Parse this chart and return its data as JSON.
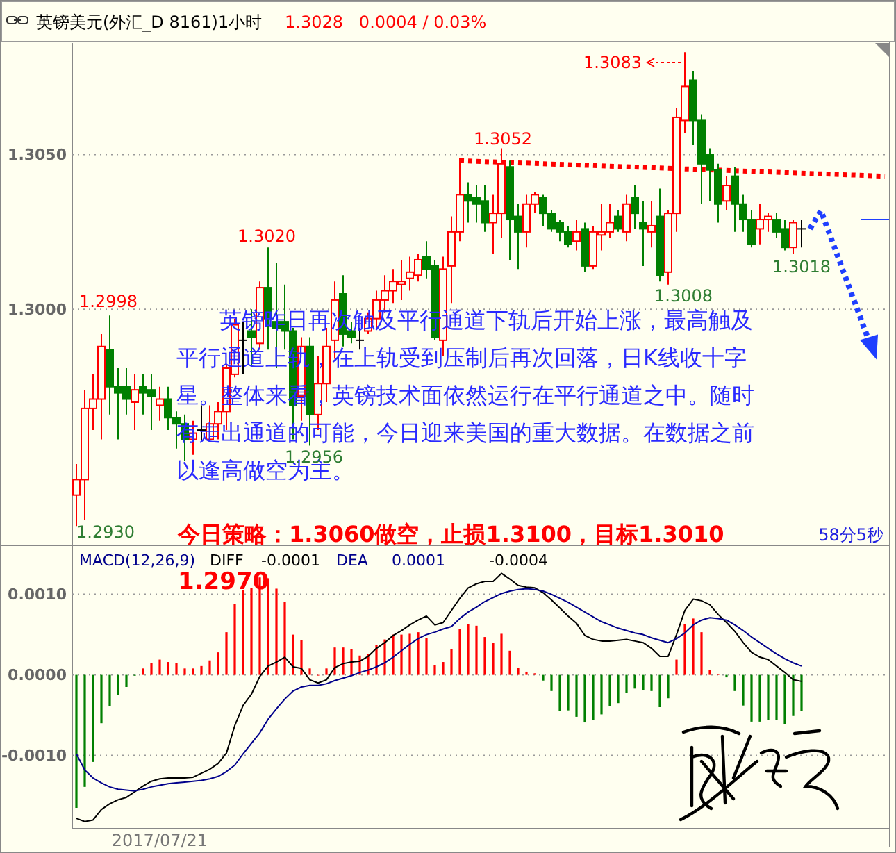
{
  "chart_data": [
    {
      "type": "candlestick",
      "title": "英镑美元(外汇_D 8161)1小时",
      "subtitle": "1.3028   0.0004 / 0.03%",
      "categories": [
        null,
        null,
        null,
        null,
        null,
        null,
        null,
        null,
        null,
        null,
        null,
        null,
        null,
        null,
        null,
        null,
        null,
        null,
        null,
        null,
        null,
        null,
        null,
        null,
        null,
        null,
        null,
        null,
        null,
        null,
        null,
        null,
        null,
        null,
        null,
        null,
        null,
        null,
        null,
        null,
        null,
        null,
        null,
        null,
        null,
        null,
        null,
        null,
        null,
        null,
        null,
        null,
        null,
        null,
        null,
        null,
        null,
        null,
        null,
        null,
        null,
        null,
        null,
        null,
        null,
        null,
        null,
        null,
        null,
        null,
        null,
        null,
        null,
        null,
        null,
        null,
        null,
        null,
        null,
        null,
        null,
        null,
        null,
        null,
        null,
        null,
        null,
        null,
        null,
        null,
        null,
        null,
        null,
        null,
        null,
        null,
        null,
        null
      ],
      "ohlc": [
        [
          1.294,
          1.295,
          1.293,
          1.2945
        ],
        [
          1.2945,
          1.2974,
          1.2932,
          1.2968
        ],
        [
          1.2968,
          1.2979,
          1.2961,
          1.2971
        ],
        [
          1.2971,
          1.2992,
          1.2958,
          1.2988
        ],
        [
          1.2987,
          1.2998,
          1.2966,
          1.2975
        ],
        [
          1.2975,
          1.2981,
          1.2958,
          1.2973
        ],
        [
          1.2975,
          1.2981,
          1.2966,
          1.2971
        ],
        [
          1.297,
          1.2979,
          1.2961,
          1.2974
        ],
        [
          1.2975,
          1.2979,
          1.2966,
          1.2973
        ],
        [
          1.2974,
          1.2979,
          1.2961,
          1.2972
        ],
        [
          1.2969,
          1.2975,
          1.2964,
          1.2971
        ],
        [
          1.2971,
          1.2975,
          1.2961,
          1.2965
        ],
        [
          1.2965,
          1.2967,
          1.2955,
          1.2963
        ],
        [
          1.2963,
          1.2966,
          1.2951,
          1.2958
        ],
        [
          1.2958,
          1.2964,
          1.2953,
          1.296
        ],
        [
          1.2961,
          1.2969,
          1.2957,
          1.2961
        ],
        [
          1.2958,
          1.2969,
          1.2957,
          1.2963
        ],
        [
          1.2963,
          1.297,
          1.2958,
          1.2967
        ],
        [
          1.2967,
          1.2982,
          1.2961,
          1.2981
        ],
        [
          1.2979,
          1.2997,
          1.2978,
          1.2995
        ],
        [
          1.299,
          1.2996,
          1.2979,
          1.299
        ],
        [
          1.2993,
          1.3,
          1.2982,
          1.2991
        ],
        [
          1.2989,
          1.3009,
          1.2987,
          1.3007
        ],
        [
          1.3007,
          1.302,
          1.2987,
          1.2997
        ],
        [
          1.2996,
          1.3015,
          1.2981,
          1.2994
        ],
        [
          1.2996,
          1.3008,
          1.2987,
          1.2993
        ],
        [
          1.2993,
          1.2994,
          1.2958,
          1.2969
        ],
        [
          1.2972,
          1.2991,
          1.2964,
          1.2988
        ],
        [
          1.2988,
          1.2991,
          1.2956,
          1.2966
        ],
        [
          1.2966,
          1.2985,
          1.2961,
          1.2976
        ],
        [
          1.2976,
          1.2994,
          1.297,
          1.2988
        ],
        [
          1.299,
          1.3009,
          1.2984,
          1.3003
        ],
        [
          1.3005,
          1.3011,
          1.2988,
          1.2992
        ],
        [
          1.2993,
          1.2996,
          1.2989,
          1.2991
        ],
        [
          1.299,
          1.2994,
          1.2987,
          1.299
        ],
        [
          1.2993,
          1.2999,
          1.2992,
          1.2997
        ],
        [
          1.2997,
          1.3006,
          1.2994,
          1.3003
        ],
        [
          1.3003,
          1.3011,
          1.2999,
          1.3006
        ],
        [
          1.3006,
          1.3013,
          1.3002,
          1.3009
        ],
        [
          1.3008,
          1.3016,
          1.3003,
          1.3009
        ],
        [
          1.301,
          1.3017,
          1.3006,
          1.3012
        ],
        [
          1.3011,
          1.3018,
          1.3009,
          1.3016
        ],
        [
          1.3017,
          1.3022,
          1.301,
          1.3013
        ],
        [
          1.3014,
          1.3016,
          1.299,
          1.2991
        ],
        [
          1.299,
          1.3017,
          1.2985,
          1.3013
        ],
        [
          1.3014,
          1.303,
          1.3002,
          1.3025
        ],
        [
          1.3025,
          1.3049,
          1.3022,
          1.3037
        ],
        [
          1.3037,
          1.3041,
          1.3028,
          1.3035
        ],
        [
          1.3036,
          1.304,
          1.3028,
          1.3034
        ],
        [
          1.3035,
          1.304,
          1.3025,
          1.3028
        ],
        [
          1.3028,
          1.3037,
          1.3018,
          1.3031
        ],
        [
          1.3031,
          1.3052,
          1.3023,
          1.3047
        ],
        [
          1.3046,
          1.3048,
          1.3016,
          1.3029
        ],
        [
          1.303,
          1.3034,
          1.3013,
          1.3025
        ],
        [
          1.3025,
          1.3037,
          1.302,
          1.3034
        ],
        [
          1.3034,
          1.3038,
          1.3031,
          1.3037
        ],
        [
          1.3036,
          1.3037,
          1.3027,
          1.3031
        ],
        [
          1.3031,
          1.3032,
          1.3025,
          1.3026
        ],
        [
          1.3028,
          1.3029,
          1.3022,
          1.3025
        ],
        [
          1.3025,
          1.3027,
          1.302,
          1.3021
        ],
        [
          1.3022,
          1.3029,
          1.3019,
          1.3025
        ],
        [
          1.3026,
          1.3028,
          1.3012,
          1.3014
        ],
        [
          1.3014,
          1.3027,
          1.3013,
          1.3025
        ],
        [
          1.3024,
          1.3034,
          1.3019,
          1.3025
        ],
        [
          1.3025,
          1.3034,
          1.3023,
          1.3028
        ],
        [
          1.303,
          1.3032,
          1.3025,
          1.3026
        ],
        [
          1.3025,
          1.3037,
          1.3022,
          1.3034
        ],
        [
          1.3036,
          1.304,
          1.3026,
          1.3031
        ],
        [
          1.3028,
          1.3035,
          1.3014,
          1.3026
        ],
        [
          1.3025,
          1.3035,
          1.302,
          1.3027
        ],
        [
          1.303,
          1.3039,
          1.3009,
          1.3011
        ],
        [
          1.3012,
          1.3032,
          1.3008,
          1.3031
        ],
        [
          1.3031,
          1.3065,
          1.3025,
          1.3062
        ],
        [
          1.3061,
          1.3083,
          1.3057,
          1.3072
        ],
        [
          1.3074,
          1.3077,
          1.3053,
          1.3061
        ],
        [
          1.3061,
          1.3063,
          1.3034,
          1.3047
        ],
        [
          1.305,
          1.3052,
          1.3035,
          1.3045
        ],
        [
          1.3045,
          1.3047,
          1.3028,
          1.3034
        ],
        [
          1.3035,
          1.3043,
          1.3032,
          1.304
        ],
        [
          1.3043,
          1.3046,
          1.3025,
          1.3034
        ],
        [
          1.3034,
          1.3037,
          1.3025,
          1.3029
        ],
        [
          1.3029,
          1.3032,
          1.302,
          1.3021
        ],
        [
          1.3026,
          1.3034,
          1.3021,
          1.3029
        ],
        [
          1.3029,
          1.3031,
          1.3025,
          1.303
        ],
        [
          1.3029,
          1.3031,
          1.3023,
          1.3025
        ],
        [
          1.3026,
          1.3029,
          1.3019,
          1.302
        ],
        [
          1.302,
          1.3029,
          1.3018,
          1.3028
        ],
        [
          1.3026,
          1.3029,
          1.302,
          1.3026
        ],
        null,
        null,
        null,
        null,
        null,
        null,
        null,
        null,
        null,
        null
      ],
      "colors": [
        "#ff0000",
        "#ff0000",
        "#ff0000",
        "#ff0000",
        "#008000",
        "#008000",
        "#008000",
        "#ff0000",
        "#008000",
        "#008000",
        "#ff0000",
        "#008000",
        "#008000",
        "#008000",
        "#ff0000",
        "#000000",
        "#ff0000",
        "#ff0000",
        "#ff0000",
        "#ff0000",
        "#000000",
        "#008000",
        "#ff0000",
        "#008000",
        "#008000",
        "#008000",
        "#008000",
        "#ff0000",
        "#008000",
        "#ff0000",
        "#ff0000",
        "#ff0000",
        "#008000",
        "#008000",
        "#000000",
        "#ff0000",
        "#ff0000",
        "#ff0000",
        "#ff0000",
        "#ff0000",
        "#ff0000",
        "#ff0000",
        "#008000",
        "#008000",
        "#ff0000",
        "#ff0000",
        "#ff0000",
        "#008000",
        "#008000",
        "#008000",
        "#ff0000",
        "#ff0000",
        "#008000",
        "#008000",
        "#ff0000",
        "#ff0000",
        "#008000",
        "#008000",
        "#008000",
        "#008000",
        "#ff0000",
        "#008000",
        "#ff0000",
        "#ff0000",
        "#ff0000",
        "#008000",
        "#ff0000",
        "#008000",
        "#008000",
        "#ff0000",
        "#008000",
        "#ff0000",
        "#ff0000",
        "#ff0000",
        "#008000",
        "#008000",
        "#008000",
        "#008000",
        "#ff0000",
        "#008000",
        "#008000",
        "#008000",
        "#ff0000",
        "#ff0000",
        "#008000",
        "#008000",
        "#ff0000",
        "#000000",
        null,
        null,
        null,
        null,
        null,
        null,
        null,
        null,
        null,
        null
      ],
      "series": [
        {
          "type": "line",
          "color": "#ff0000",
          "line_style": "dotted",
          "values": [
            null,
            null,
            null,
            null,
            null,
            null,
            null,
            null,
            null,
            null,
            null,
            null,
            null,
            null,
            null,
            null,
            null,
            null,
            null,
            null,
            null,
            null,
            null,
            null,
            null,
            null,
            null,
            null,
            null,
            null,
            null,
            null,
            null,
            null,
            null,
            null,
            null,
            null,
            null,
            null,
            null,
            null,
            null,
            null,
            null,
            null,
            1.3048,
            null,
            null,
            null,
            null,
            null,
            null,
            null,
            null,
            null,
            null,
            null,
            null,
            null,
            null,
            null,
            null,
            null,
            null,
            null,
            null,
            null,
            null,
            null,
            null,
            null,
            null,
            null,
            null,
            null,
            null,
            null,
            null,
            null,
            null,
            null,
            null,
            null,
            null,
            null,
            null,
            null,
            null,
            null,
            null,
            null,
            null,
            null,
            null,
            null,
            null,
            1.3043
          ]
        }
      ],
      "ylim": [
        1.2924,
        1.3086
      ],
      "yticks": [
        {
          "value": 1.3,
          "label": "1.3000"
        },
        {
          "value": 1.305,
          "label": "1.3050"
        }
      ],
      "grid": "y",
      "tick_labels": "y",
      "annotations": [
        "英镑昨日再次触及平行通道下轨后开始上涨，最高触及平行通道上轨，在上轨受到压制后再次回落，日K线收十字星。整体来看，英镑技术面依然运行在平行通道之中。随时有走出通道的可能，今日迎来美国的重大数据。在数据之前以逢高做空为主。",
        "今日策略：1.3060做空，止损1.3100，目标1.3010",
        "58分5秒",
        "1.3083",
        "1.3052",
        "1.3020",
        "1.2998",
        "1.2956",
        "1.3008",
        "1.3018",
        "1.2930"
      ]
    },
    {
      "type": "bar",
      "title": "MACD(12,26,9)",
      "categories": [
        null,
        null,
        null,
        null,
        null,
        null,
        null,
        null,
        null,
        null,
        "2017/07/21",
        null,
        null,
        null,
        null,
        null,
        null,
        null,
        null,
        null,
        null,
        null,
        null,
        null,
        null,
        null,
        null,
        null,
        null,
        null,
        null,
        null,
        null,
        null,
        null,
        null,
        null,
        null,
        null,
        null,
        null,
        null,
        null,
        null,
        null,
        null,
        null,
        null,
        null,
        null,
        null,
        null,
        null,
        null,
        null,
        null,
        null,
        null,
        null,
        null,
        null,
        null,
        null,
        null,
        null,
        null,
        null,
        null,
        null,
        null,
        null,
        null,
        null,
        null,
        null,
        null,
        null,
        null,
        null,
        null,
        null,
        null,
        null,
        null,
        null,
        null,
        null,
        null,
        null,
        null,
        null,
        null,
        null,
        null,
        null,
        null,
        null,
        null
      ],
      "series": [
        {
          "type": "bar",
          "values": [
            -0.00165,
            -0.00139,
            -0.00108,
            -0.0006,
            -0.00039,
            -0.00025,
            -0.00015,
            -1e-05,
            8e-05,
            0.00015,
            0.00019,
            0.00016,
            0.00015,
            8e-05,
            8e-05,
            0.00011,
            0.00018,
            0.00028,
            0.00053,
            0.00088,
            0.00105,
            0.00108,
            0.00121,
            0.0012,
            0.00107,
            0.00091,
            0.0005,
            0.00043,
            8e-05,
            0,
            8e-05,
            0.00034,
            0.00034,
            0.00032,
            0.00024,
            0.00026,
            0.00037,
            0.00044,
            0.0005,
            0.0005,
            0.00051,
            0.00053,
            0.00046,
            0.00012,
            0.00016,
            0.00032,
            0.00057,
            0.00063,
            0.00061,
            0.00047,
            0.0004,
            0.00051,
            0.0003,
            9e-05,
            4e-05,
            2e-05,
            -7e-05,
            -0.0002,
            -0.00045,
            -0.00044,
            -0.00052,
            -0.00059,
            -0.00056,
            -0.00049,
            -0.00039,
            -0.00035,
            -0.00022,
            -0.00017,
            -0.00019,
            -0.0002,
            -0.0004,
            -0.00029,
            0.00019,
            0.00063,
            0.0007,
            0.00053,
            6e-05,
            1e-05,
            -3e-05,
            -0.0002,
            -0.00038,
            -0.00058,
            -0.00058,
            -0.00056,
            -0.00056,
            -0.00061,
            -0.00051,
            -0.00045,
            null,
            null,
            null,
            null,
            null,
            null,
            null,
            null,
            null,
            null
          ],
          "colors": [
            "#008000",
            "#008000",
            "#008000",
            "#008000",
            "#008000",
            "#008000",
            "#008000",
            "#008000",
            "#ff0000",
            "#ff0000",
            "#ff0000",
            "#ff0000",
            "#ff0000",
            "#ff0000",
            "#ff0000",
            "#ff0000",
            "#ff0000",
            "#ff0000",
            "#ff0000",
            "#ff0000",
            "#ff0000",
            "#ff0000",
            "#ff0000",
            "#ff0000",
            "#ff0000",
            "#ff0000",
            "#ff0000",
            "#ff0000",
            "#ff0000",
            "#ff0000",
            "#ff0000",
            "#ff0000",
            "#ff0000",
            "#ff0000",
            "#ff0000",
            "#ff0000",
            "#ff0000",
            "#ff0000",
            "#ff0000",
            "#ff0000",
            "#ff0000",
            "#ff0000",
            "#ff0000",
            "#ff0000",
            "#ff0000",
            "#ff0000",
            "#ff0000",
            "#ff0000",
            "#ff0000",
            "#ff0000",
            "#ff0000",
            "#ff0000",
            "#ff0000",
            "#ff0000",
            "#ff0000",
            "#ff0000",
            "#008000",
            "#008000",
            "#008000",
            "#008000",
            "#008000",
            "#008000",
            "#008000",
            "#008000",
            "#008000",
            "#008000",
            "#008000",
            "#008000",
            "#008000",
            "#008000",
            "#008000",
            "#008000",
            "#ff0000",
            "#ff0000",
            "#ff0000",
            "#ff0000",
            "#ff0000",
            "#ff0000",
            "#008000",
            "#008000",
            "#008000",
            "#008000",
            "#008000",
            "#008000",
            "#008000",
            "#008000",
            "#008000",
            "#008000",
            null,
            null,
            null,
            null,
            null,
            null,
            null,
            null,
            null,
            null
          ]
        },
        {
          "type": "line",
          "name": "DIFF",
          "color": "#000000",
          "values": [
            -0.00178,
            -0.00182,
            -0.0018,
            -0.00167,
            -0.0016,
            -0.00155,
            -0.00152,
            -0.00145,
            -0.00138,
            -0.00132,
            -0.00129,
            -0.00128,
            -0.00128,
            -0.00128,
            -0.00127,
            -0.00122,
            -0.00117,
            -0.0011,
            -0.00097,
            -0.00063,
            -0.00038,
            -0.00024,
            -2e-05,
            0.00011,
            0.00016,
            0.00022,
            0.0001,
            8e-05,
            -6e-05,
            -0.0001,
            -6e-05,
            9e-05,
            0.00014,
            0.00016,
            0.00017,
            0.00023,
            0.00033,
            0.0004,
            0.00049,
            0.00055,
            0.00062,
            0.00068,
            0.00073,
            0.00062,
            0.00065,
            0.0008,
            0.00095,
            0.00108,
            0.00113,
            0.00116,
            0.00116,
            0.00126,
            0.00119,
            0.00111,
            0.00109,
            0.00108,
            0.00102,
            0.00093,
            0.00083,
            0.00073,
            0.00064,
            0.00049,
            0.00044,
            0.00042,
            0.00042,
            0.00043,
            0.00044,
            0.00042,
            0.0004,
            0.00033,
            0.00023,
            0.00023,
            0.0005,
            0.0008,
            0.00094,
            0.00092,
            0.00087,
            0.00075,
            0.00065,
            0.00054,
            0.0004,
            0.00028,
            0.00022,
            0.00019,
            0.00011,
            3e-05,
            -6e-05,
            -8e-05,
            null,
            null,
            null,
            null,
            null,
            null,
            null,
            null,
            null,
            null
          ]
        },
        {
          "type": "line",
          "name": "DEA",
          "color": "#00008b",
          "values": [
            -0.00098,
            -0.00118,
            -0.00128,
            -0.00134,
            -0.00139,
            -0.00142,
            -0.00143,
            -0.00144,
            -0.00142,
            -0.00139,
            -0.00137,
            -0.00135,
            -0.00134,
            -0.00133,
            -0.00132,
            -0.00131,
            -0.00129,
            -0.00126,
            -0.0012,
            -0.00112,
            -0.00098,
            -0.00085,
            -0.00072,
            -0.00055,
            -0.00042,
            -0.0003,
            -0.0002,
            -0.00015,
            -0.00013,
            -0.00013,
            -0.00011,
            -7e-05,
            -4e-05,
            -1e-05,
            3e-05,
            6e-05,
            0.0001,
            0.00015,
            0.00022,
            0.0003,
            0.00038,
            0.00045,
            0.0005,
            0.00053,
            0.00057,
            0.0006,
            0.0007,
            0.00078,
            0.00084,
            0.00091,
            0.00096,
            0.00101,
            0.00104,
            0.00106,
            0.00107,
            0.00106,
            0.00104,
            0.001,
            0.00095,
            0.0009,
            0.00084,
            0.00078,
            0.00072,
            0.00066,
            0.00062,
            0.00058,
            0.00055,
            0.00052,
            0.0005,
            0.00046,
            0.00043,
            0.0004,
            0.00045,
            0.00052,
            0.00062,
            0.00068,
            0.00071,
            0.0007,
            0.00068,
            0.00062,
            0.00055,
            0.00047,
            0.0004,
            0.00033,
            0.00026,
            0.0002,
            0.00015,
            0.00011,
            null,
            null,
            null,
            null,
            null,
            null,
            null,
            null,
            null,
            null
          ]
        }
      ],
      "ylim": [
        -0.0019,
        0.0016
      ],
      "yticks": [
        {
          "value": 0.001,
          "label": "0.0010"
        },
        {
          "value": 0,
          "label": "0.0000"
        },
        {
          "value": -0.001,
          "label": "-0.0010"
        }
      ],
      "grid": "y",
      "legend": "top left",
      "annotations": [
        "-0.0001",
        "0.0001",
        "-0.0004",
        "1.2970"
      ]
    }
  ]
}
